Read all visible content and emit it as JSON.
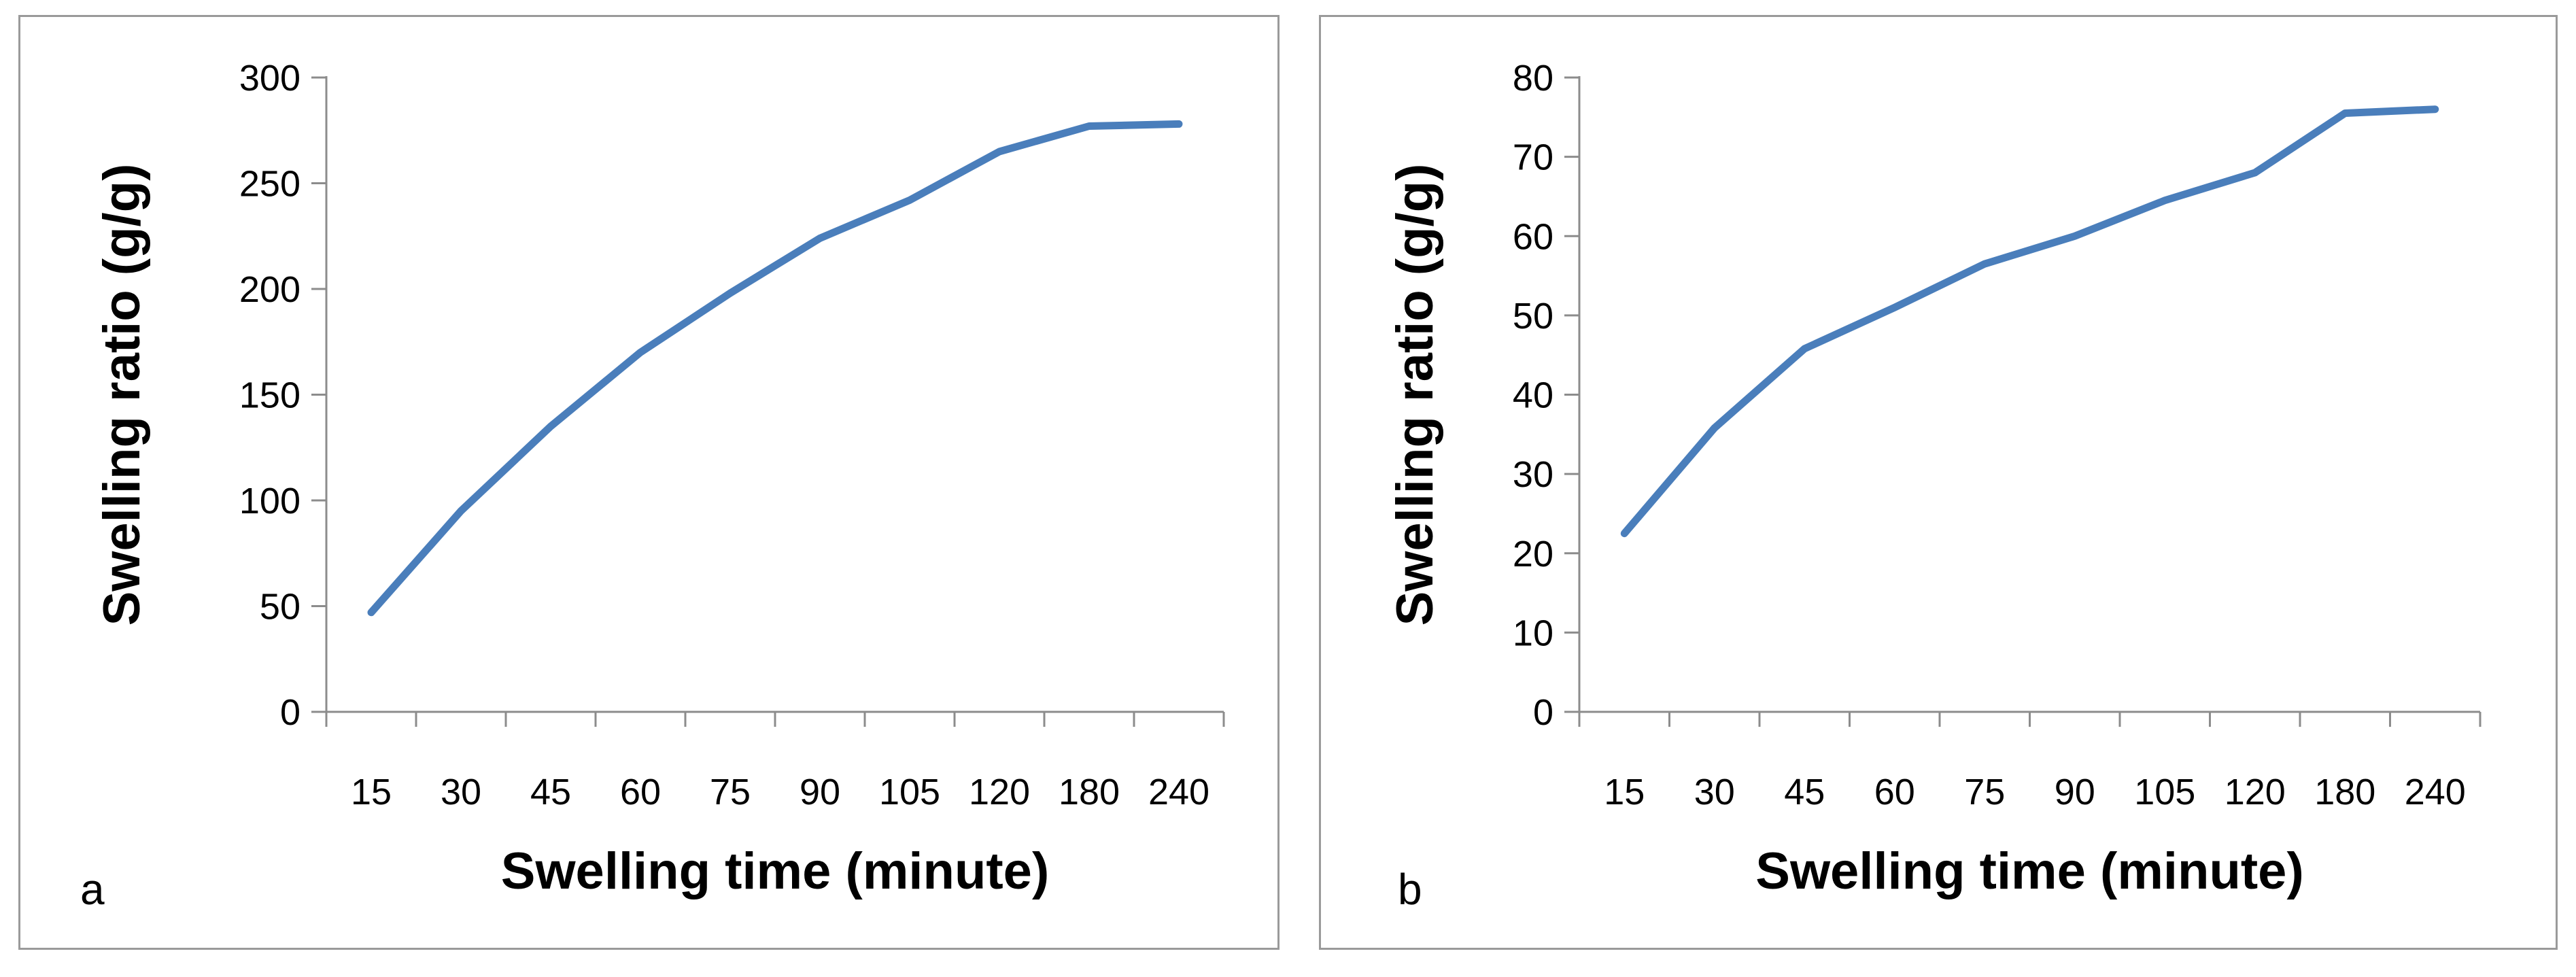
{
  "chart_data": [
    {
      "type": "line",
      "panel_label": "a",
      "xlabel": "Swelling time (minute)",
      "ylabel": "Swelling ratio (g/g)",
      "categories": [
        "15",
        "30",
        "45",
        "60",
        "75",
        "90",
        "105",
        "120",
        "180",
        "240"
      ],
      "ylim": [
        0,
        300
      ],
      "yticks": [
        0,
        50,
        100,
        150,
        200,
        250,
        300
      ],
      "series": [
        {
          "name": "Swelling ratio",
          "color": "#4a7ebb",
          "values": [
            47,
            95,
            135,
            170,
            198,
            224,
            242,
            265,
            277,
            278
          ]
        }
      ]
    },
    {
      "type": "line",
      "panel_label": "b",
      "xlabel": "Swelling time (minute)",
      "ylabel": "Swelling ratio (g/g)",
      "categories": [
        "15",
        "30",
        "45",
        "60",
        "75",
        "90",
        "105",
        "120",
        "180",
        "240"
      ],
      "ylim": [
        0,
        80
      ],
      "yticks": [
        0,
        10,
        20,
        30,
        40,
        50,
        60,
        70,
        80
      ],
      "series": [
        {
          "name": "Swelling ratio",
          "color": "#4a7ebb",
          "values": [
            22.5,
            35.8,
            45.8,
            51.0,
            56.5,
            60.0,
            64.5,
            68.0,
            75.5,
            76.0
          ]
        }
      ]
    }
  ]
}
